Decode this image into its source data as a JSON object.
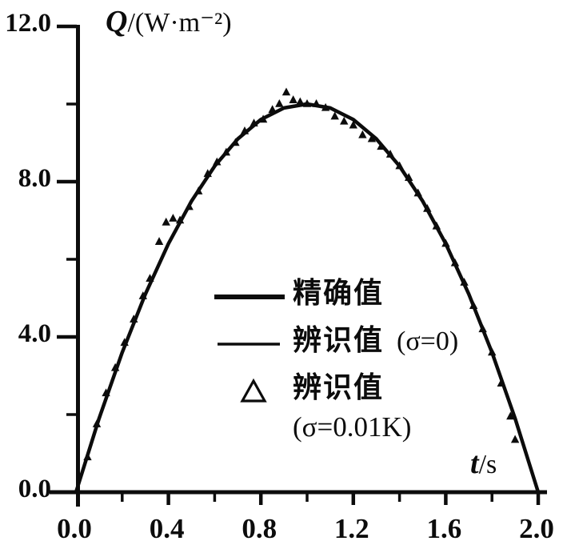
{
  "figure": {
    "background": "#ffffff",
    "ink_color": "#0c0c0c"
  },
  "axes": {
    "y_title_symbol": "Q",
    "y_title_unit": "/(W·m⁻²)",
    "x_title_symbol": "t",
    "x_title_unit": "/s",
    "x_tick_labels": [
      "0.0",
      "0.4",
      "0.8",
      "1.2",
      "1.6",
      "2.0"
    ],
    "y_tick_labels": [
      "12.0",
      "8.0",
      "4.0",
      "0.0"
    ]
  },
  "legend": {
    "items": [
      {
        "marker": "thick-line",
        "label": "精确值",
        "suffix": ""
      },
      {
        "marker": "thin-line",
        "label": "辨识值",
        "suffix": "(σ=0)"
      },
      {
        "marker": "triangle",
        "label": "辨识值",
        "suffix": "",
        "label_line2": "(σ=0.01K)"
      }
    ]
  },
  "chart_data": {
    "type": "line",
    "title": "",
    "xlabel": "t/s",
    "ylabel": "Q/(W·m⁻²)",
    "xlim": [
      0.0,
      2.0
    ],
    "ylim": [
      0.0,
      12.0
    ],
    "grid": false,
    "legend_position": "inside-center",
    "x_major_ticks": [
      0.0,
      0.4,
      0.8,
      1.2,
      1.6,
      2.0
    ],
    "x_minor_ticks": [
      0.2,
      0.6,
      1.0,
      1.4,
      1.8
    ],
    "y_major_ticks": [
      0.0,
      4.0,
      8.0,
      12.0
    ],
    "y_minor_ticks": [
      2.0,
      6.0,
      10.0
    ],
    "series": [
      {
        "name": "精确值",
        "type": "line",
        "style": "thick",
        "x": [
          0.0,
          0.1,
          0.2,
          0.3,
          0.4,
          0.5,
          0.6,
          0.7,
          0.8,
          0.9,
          1.0,
          1.1,
          1.2,
          1.3,
          1.4,
          1.5,
          1.6,
          1.7,
          1.8,
          1.9,
          2.0
        ],
        "y": [
          0.0,
          1.9,
          3.6,
          5.1,
          6.4,
          7.5,
          8.4,
          9.1,
          9.6,
          9.9,
          10.0,
          9.9,
          9.6,
          9.1,
          8.4,
          7.5,
          6.4,
          5.1,
          3.6,
          1.9,
          0.0
        ]
      },
      {
        "name": "辨识值 (σ=0)",
        "type": "line",
        "style": "thin",
        "x": [
          0.0,
          0.1,
          0.2,
          0.3,
          0.4,
          0.5,
          0.6,
          0.7,
          0.8,
          0.9,
          1.0,
          1.1,
          1.2,
          1.3,
          1.4,
          1.5,
          1.6,
          1.7,
          1.8,
          1.9,
          2.0
        ],
        "y": [
          0.0,
          1.92,
          3.58,
          5.13,
          6.37,
          7.53,
          8.42,
          9.12,
          9.58,
          9.92,
          10.03,
          9.87,
          9.62,
          9.07,
          8.43,
          7.48,
          6.42,
          5.08,
          3.62,
          1.88,
          0.05
        ]
      },
      {
        "name": "辨识值 (σ=0.01K)",
        "type": "scatter",
        "marker": "triangle",
        "x": [
          0.05,
          0.09,
          0.13,
          0.17,
          0.21,
          0.25,
          0.29,
          0.32,
          0.36,
          0.39,
          0.42,
          0.45,
          0.49,
          0.53,
          0.57,
          0.61,
          0.65,
          0.69,
          0.73,
          0.77,
          0.81,
          0.85,
          0.88,
          0.91,
          0.94,
          0.97,
          1.0,
          1.04,
          1.08,
          1.12,
          1.16,
          1.2,
          1.24,
          1.28,
          1.32,
          1.36,
          1.4,
          1.44,
          1.48,
          1.52,
          1.56,
          1.6,
          1.64,
          1.68,
          1.72,
          1.76,
          1.8,
          1.84,
          1.88,
          1.9
        ],
        "y": [
          0.9,
          1.75,
          2.55,
          3.2,
          3.85,
          4.45,
          5.05,
          5.5,
          6.45,
          6.95,
          7.05,
          7.0,
          7.35,
          7.75,
          8.2,
          8.5,
          8.75,
          9.0,
          9.3,
          9.5,
          9.6,
          9.85,
          10.0,
          10.3,
          10.1,
          10.05,
          10.0,
          10.0,
          9.9,
          9.68,
          9.55,
          9.45,
          9.2,
          9.1,
          8.9,
          8.7,
          8.4,
          8.1,
          7.7,
          7.3,
          6.85,
          6.4,
          5.9,
          5.4,
          4.8,
          4.2,
          3.6,
          2.8,
          1.95,
          1.35
        ]
      }
    ]
  }
}
